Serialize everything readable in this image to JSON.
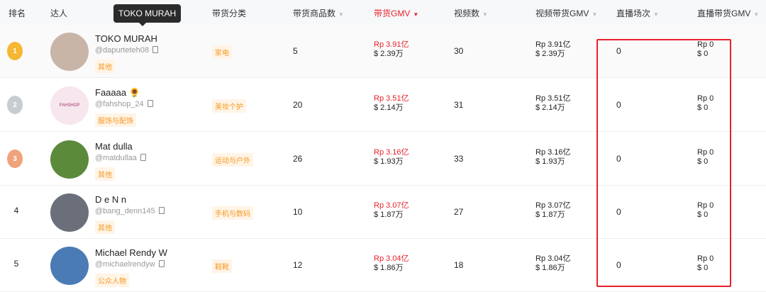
{
  "tooltip": "TOKO MURAH",
  "headers": {
    "rank": "排名",
    "creator": "达人",
    "category": "带货分类",
    "products": "带货商品数",
    "gmv": "带货GMV",
    "videos": "视频数",
    "video_gmv": "视频带货GMV",
    "live_count": "直播场次",
    "live_gmv": "直播带货GMV"
  },
  "accent": "#e8222b",
  "rows": [
    {
      "rank": "1",
      "medal": "gold",
      "name": "TOKO MURAH",
      "handle": "@dapurteteh08",
      "tag": "其他",
      "category": "家电",
      "products": "5",
      "gmv_rp": "Rp 3.91亿",
      "gmv_usd": "$ 2.39万",
      "videos": "30",
      "vgmv_rp": "Rp 3.91亿",
      "vgmv_usd": "$ 2.39万",
      "live": "0",
      "lgmv_rp": "Rp 0",
      "lgmv_usd": "$ 0"
    },
    {
      "rank": "2",
      "medal": "silver",
      "name": "Faaaaa 🌻",
      "handle": "@fahshop_24",
      "tag": "服饰与配饰",
      "category": "美妆个护",
      "products": "20",
      "gmv_rp": "Rp 3.51亿",
      "gmv_usd": "$ 2.14万",
      "videos": "31",
      "vgmv_rp": "Rp 3.51亿",
      "vgmv_usd": "$ 2.14万",
      "live": "0",
      "lgmv_rp": "Rp 0",
      "lgmv_usd": "$ 0",
      "avatar_text": "FAHSHOP"
    },
    {
      "rank": "3",
      "medal": "bronze",
      "name": "Mat dulla",
      "handle": "@matdullaa",
      "tag": "其他",
      "category": "运动与户外",
      "products": "26",
      "gmv_rp": "Rp 3.16亿",
      "gmv_usd": "$ 1.93万",
      "videos": "33",
      "vgmv_rp": "Rp 3.16亿",
      "vgmv_usd": "$ 1.93万",
      "live": "0",
      "lgmv_rp": "Rp 0",
      "lgmv_usd": "$ 0"
    },
    {
      "rank": "4",
      "name": "D e N n",
      "handle": "@bang_denn145",
      "tag": "其他",
      "category": "手机与数码",
      "products": "10",
      "gmv_rp": "Rp 3.07亿",
      "gmv_usd": "$ 1.87万",
      "videos": "27",
      "vgmv_rp": "Rp 3.07亿",
      "vgmv_usd": "$ 1.87万",
      "live": "0",
      "lgmv_rp": "Rp 0",
      "lgmv_usd": "$ 0"
    },
    {
      "rank": "5",
      "name": "Michael Rendy W",
      "handle": "@michaelrendyw",
      "tag": "公众人物",
      "category": "鞋靴",
      "products": "12",
      "gmv_rp": "Rp 3.04亿",
      "gmv_usd": "$ 1.86万",
      "videos": "18",
      "vgmv_rp": "Rp 3.04亿",
      "vgmv_usd": "$ 1.86万",
      "live": "0",
      "lgmv_rp": "Rp 0",
      "lgmv_usd": "$ 0"
    }
  ]
}
